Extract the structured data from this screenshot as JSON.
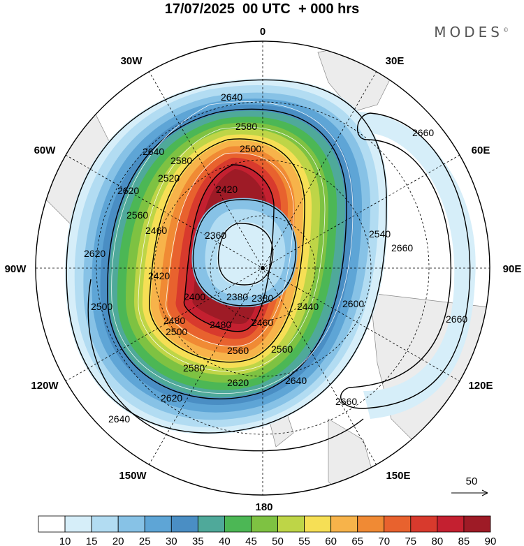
{
  "header": {
    "title": "17/07/2025  00 UTC  + 000 hrs",
    "brand": "MODES"
  },
  "map": {
    "longitude_labels": [
      "0",
      "30E",
      "60E",
      "90E",
      "120E",
      "150E",
      "180",
      "150W",
      "120W",
      "90W",
      "60W",
      "30W"
    ],
    "contour_labels": [
      "2640",
      "2640",
      "2580",
      "2580",
      "2520",
      "2500",
      "2420",
      "2360",
      "2380",
      "2620",
      "2560",
      "2460",
      "2420",
      "2620",
      "2500",
      "2400",
      "2380",
      "2440",
      "2480",
      "2500",
      "2480",
      "2460",
      "2560",
      "2560",
      "2580",
      "2620",
      "2620",
      "2640",
      "2640",
      "2660",
      "2660",
      "2660",
      "2660",
      "2600",
      "2540"
    ],
    "vector_reference": "50",
    "colors": {
      "shade": [
        "#ffffff",
        "#d6eef9",
        "#b2dcf2",
        "#87c2e6",
        "#5ea5d6",
        "#4a8ec4",
        "#4fa99a",
        "#4cb755",
        "#7ec242",
        "#bed547",
        "#f6df55",
        "#f7b34a",
        "#f08a34",
        "#e8622e",
        "#d83a2d",
        "#c42030",
        "#9e1b26"
      ],
      "land": "#ececec"
    }
  },
  "colorbar": {
    "labels": [
      "10",
      "15",
      "20",
      "25",
      "30",
      "35",
      "40",
      "45",
      "50",
      "55",
      "60",
      "65",
      "70",
      "75",
      "80",
      "85",
      "90"
    ]
  }
}
